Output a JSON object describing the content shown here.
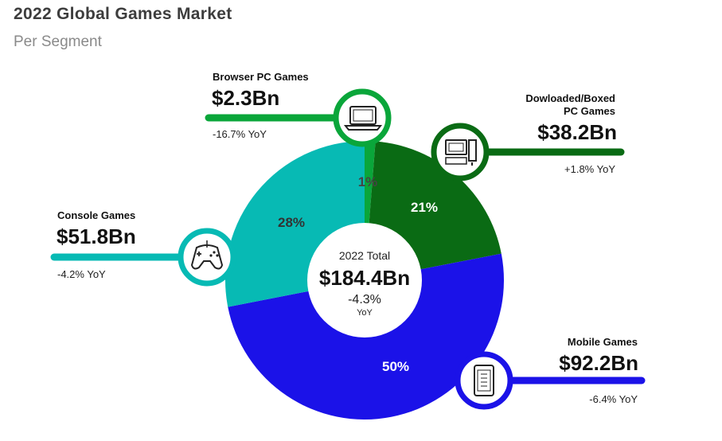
{
  "title": "2022 Global Games Market",
  "subtitle": "Per Segment",
  "center": {
    "label": "2022 Total",
    "value": "$184.4Bn",
    "yoy": "-4.3%",
    "yoy_label": "YoY"
  },
  "colors": {
    "browser": "#0aa63a",
    "downloaded": "#0a6b14",
    "mobile": "#1b12e8",
    "console": "#07bab4",
    "center_bg": "#ffffff"
  },
  "chart_data": {
    "type": "pie",
    "title": "2022 Global Games Market",
    "subtitle": "Per Segment",
    "unit": "Bn",
    "segments": [
      {
        "key": "browser",
        "name": "Browser PC Games",
        "value": 2.3,
        "value_label": "$2.3Bn",
        "percent": 1,
        "percent_label": "1%",
        "yoy": "-16.7% YoY",
        "icon": "laptop-icon"
      },
      {
        "key": "downloaded",
        "name_lines": [
          "Dowloaded/Boxed",
          "PC Games"
        ],
        "value": 38.2,
        "value_label": "$38.2Bn",
        "percent": 21,
        "percent_label": "21%",
        "yoy": "+1.8% YoY",
        "icon": "desktop-computer-icon"
      },
      {
        "key": "mobile",
        "name": "Mobile Games",
        "value": 92.2,
        "value_label": "$92.2Bn",
        "percent": 50,
        "percent_label": "50%",
        "yoy": "-6.4% YoY",
        "icon": "smartphone-icon"
      },
      {
        "key": "console",
        "name": "Console Games",
        "value": 51.8,
        "value_label": "$51.8Bn",
        "percent": 28,
        "percent_label": "28%",
        "yoy": "-4.2% YoY",
        "icon": "gamepad-icon"
      }
    ]
  }
}
